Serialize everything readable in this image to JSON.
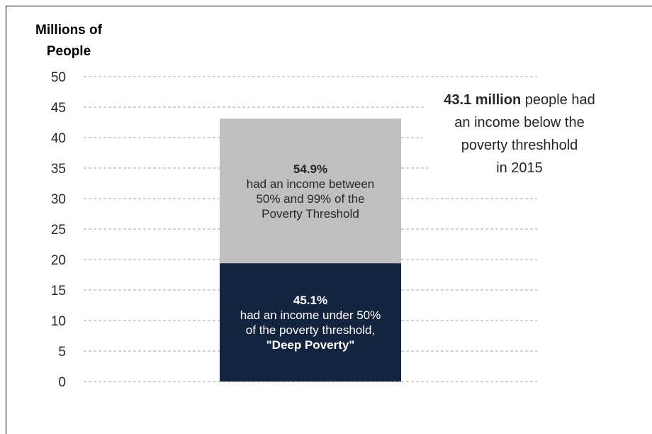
{
  "chart_data": {
    "type": "bar",
    "stacked": true,
    "ylabel": [
      "Millions of",
      "People"
    ],
    "ylim": [
      0,
      50
    ],
    "yticks": [
      0,
      5,
      10,
      15,
      20,
      25,
      30,
      35,
      40,
      45,
      50
    ],
    "grid": true,
    "total": 43.1,
    "series": [
      {
        "value": 19.4,
        "color": "#13243f",
        "text_color": "#ffffff",
        "label_bold": "45.1%",
        "label_lines": [
          "had an income under 50%",
          "of the poverty threshold,"
        ],
        "label_tail_bold": "\"Deep Poverty\""
      },
      {
        "value": 23.7,
        "color": "#bfbfbf",
        "text_color": "#262626",
        "label_bold": "54.9%",
        "label_lines": [
          "had an income between",
          "50% and 99% of the",
          "Poverty Threshold"
        ],
        "label_tail_bold": ""
      }
    ],
    "annotation": {
      "bold": "43.1 million",
      "first_line_rest": " people had",
      "lines": [
        "an income below the",
        "poverty threshhold",
        "in 2015"
      ]
    }
  }
}
